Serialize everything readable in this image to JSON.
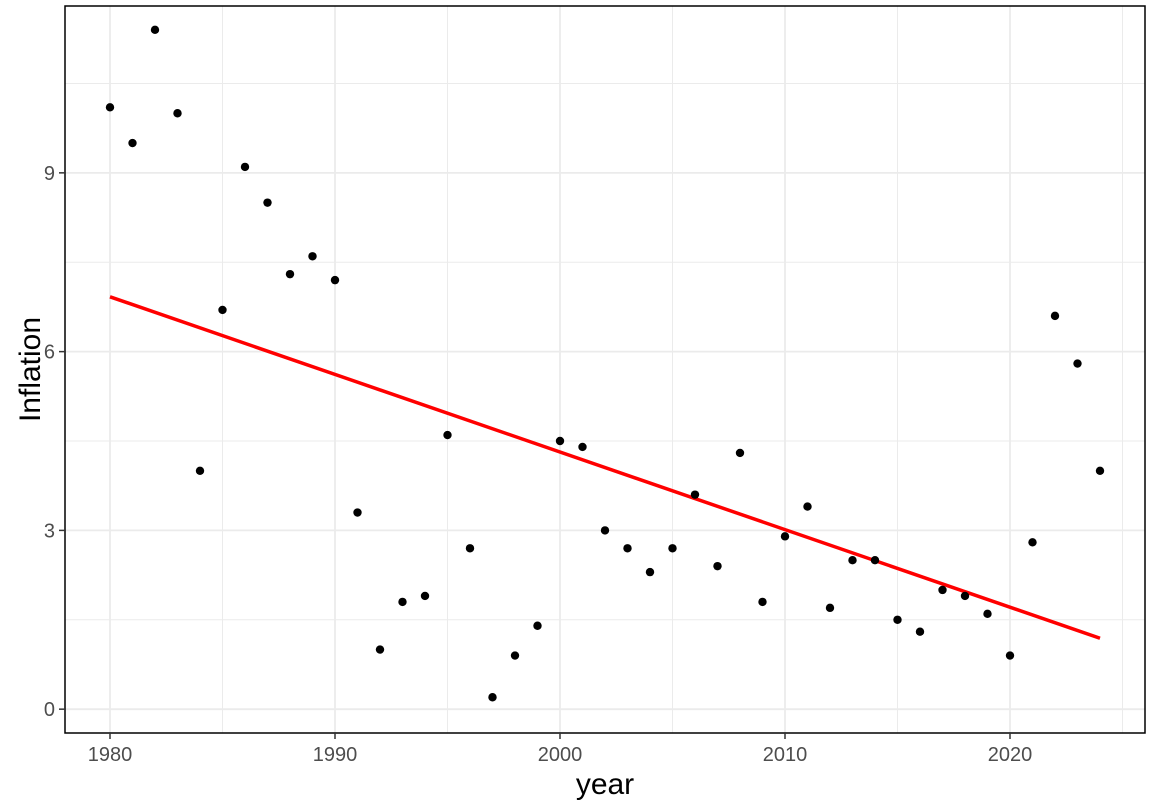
{
  "chart_data": {
    "type": "scatter",
    "title": "",
    "xlabel": "year",
    "ylabel": "Inflation",
    "xlim": [
      1978,
      2026
    ],
    "ylim": [
      -0.4,
      11.8
    ],
    "x_ticks": [
      1980,
      1990,
      2000,
      2010,
      2020
    ],
    "y_ticks": [
      0,
      3,
      6,
      9
    ],
    "grid": true,
    "legend": "none",
    "colors": {
      "points": "#000000",
      "trend": "#ff0000",
      "grid": "#ebebeb",
      "border": "#000000"
    },
    "series": [
      {
        "kind": "points",
        "x": [
          1980,
          1981,
          1982,
          1983,
          1984,
          1985,
          1986,
          1987,
          1988,
          1989,
          1990,
          1991,
          1992,
          1993,
          1994,
          1995,
          1996,
          1997,
          1998,
          1999,
          2000,
          2001,
          2002,
          2003,
          2004,
          2005,
          2006,
          2007,
          2008,
          2009,
          2010,
          2011,
          2012,
          2013,
          2014,
          2015,
          2016,
          2017,
          2018,
          2019,
          2020,
          2021,
          2022,
          2023,
          2024
        ],
        "values": [
          10.1,
          9.5,
          11.4,
          10.0,
          4.0,
          6.7,
          9.1,
          8.5,
          7.3,
          7.6,
          7.2,
          3.3,
          1.0,
          1.8,
          1.9,
          4.6,
          2.7,
          0.2,
          0.9,
          1.4,
          4.5,
          4.4,
          3.0,
          2.7,
          2.3,
          2.7,
          3.6,
          2.4,
          4.3,
          1.8,
          2.9,
          3.4,
          1.7,
          2.5,
          2.5,
          1.5,
          1.3,
          2.0,
          1.9,
          1.6,
          0.9,
          2.8,
          6.6,
          5.8,
          4.0
        ]
      },
      {
        "kind": "linear-fit",
        "x": [
          1980,
          2024
        ],
        "values": [
          6.92,
          1.19
        ]
      }
    ]
  }
}
